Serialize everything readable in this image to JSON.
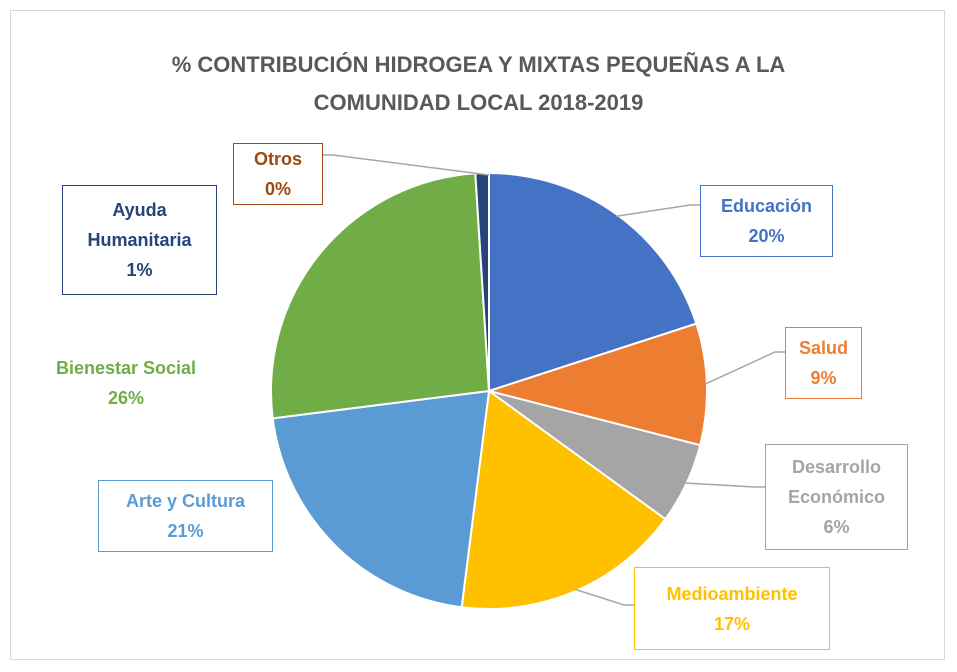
{
  "chart_data": {
    "type": "pie",
    "title": "% CONTRIBUCIÓN HIDROGEA Y MIXTAS PEQUEÑAS A LA COMUNIDAD LOCAL 2018-2019",
    "categories": [
      "Educación",
      "Salud",
      "Desarrollo Económico",
      "Medioambiente",
      "Arte y Cultura",
      "Bienestar Social",
      "Ayuda Humanitaria",
      "Otros"
    ],
    "values": [
      20,
      9,
      6,
      17,
      21,
      26,
      1,
      0
    ],
    "value_labels": [
      "20%",
      "9%",
      "6%",
      "17%",
      "21%",
      "26%",
      "1%",
      "0%"
    ],
    "colors": [
      "#4472c4",
      "#ed7d31",
      "#a5a5a5",
      "#ffc000",
      "#5b9bd5",
      "#70ad47",
      "#264478",
      "#9e480e"
    ]
  }
}
